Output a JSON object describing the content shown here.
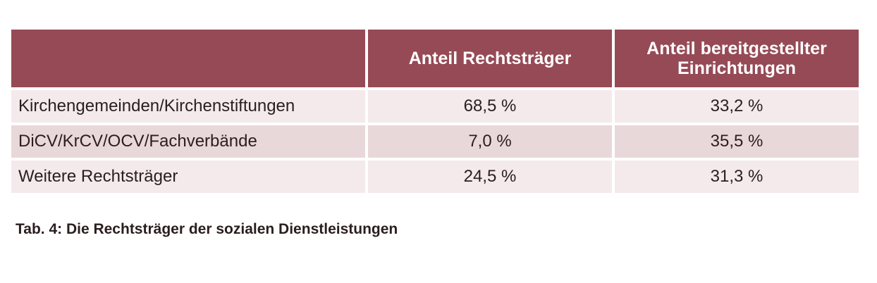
{
  "table": {
    "headers": [
      "",
      "Anteil Rechtsträger",
      "Anteil bereitgestellter Einrichtungen"
    ],
    "rows": [
      {
        "label": "Kirchengemeinden/Kirchenstiftungen",
        "rechtstraeger": "68,5 %",
        "einrichtungen": "33,2 %"
      },
      {
        "label": "DiCV/KrCV/OCV/Fachverbände",
        "rechtstraeger": "7,0 %",
        "einrichtungen": "35,5 %"
      },
      {
        "label": "Weitere Rechtsträger",
        "rechtstraeger": "24,5 %",
        "einrichtungen": "31,3 %"
      }
    ],
    "colors": {
      "header_bg": "#964a56",
      "row_light": "#f4eaeb",
      "row_dark": "#e9d8da"
    }
  },
  "caption": "Tab. 4: Die Rechtsträger der sozialen Dienstleistungen"
}
